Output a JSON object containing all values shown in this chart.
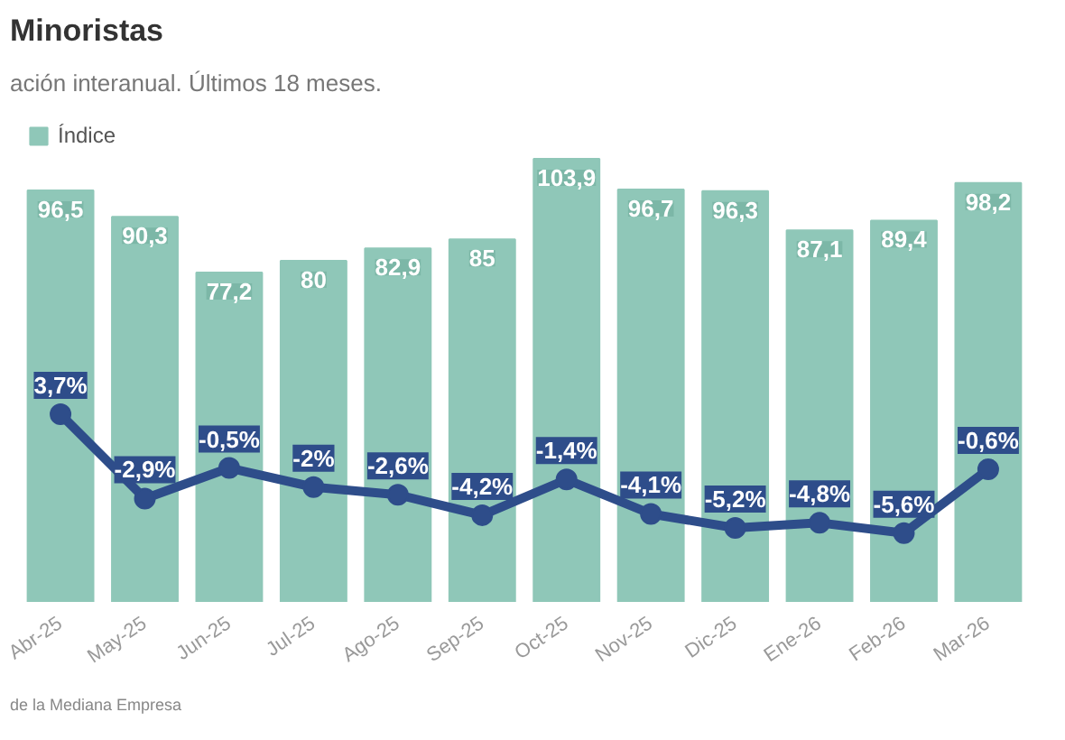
{
  "chart_data": {
    "type": "bar",
    "title": "Minoristas",
    "subtitle": "ación interanual. Últimos 18 meses.",
    "categories": [
      "Abr-25",
      "May-25",
      "Jun-25",
      "Jul-25",
      "Ago-25",
      "Sep-25",
      "Oct-25",
      "Nov-25",
      "Dic-25",
      "Ene-26",
      "Feb-26",
      "Mar-26"
    ],
    "series": [
      {
        "name": "Índice",
        "color": "#8fc7b8",
        "values": [
          96.5,
          90.3,
          77.2,
          80,
          82.9,
          85,
          103.9,
          96.7,
          96.3,
          87.1,
          89.4,
          98.2
        ],
        "value_labels": [
          "96,5",
          "90,3",
          "77,2",
          "80",
          "82,9",
          "85",
          "103,9",
          "96,7",
          "96,3",
          "87,1",
          "89,4",
          "98,2"
        ]
      },
      {
        "type": "line",
        "axis": "y2",
        "marker": "circle",
        "color": "#2e4d8a",
        "values": [
          3.7,
          -2.9,
          -0.5,
          -2,
          -2.6,
          -4.2,
          -1.4,
          -4.1,
          -5.2,
          -4.8,
          -5.6,
          -0.6
        ],
        "value_labels": [
          "3,7%",
          "-2,9%",
          "-0,5%",
          "-2%",
          "-2,6%",
          "-4,2%",
          "-1,4%",
          "-4,1%",
          "-5,2%",
          "-4,8%",
          "-5,6%",
          "-0,6%"
        ]
      }
    ],
    "legend": "top left",
    "tick_labels": "x",
    "grid": false,
    "annotations": [
      "de la Mediana Empresa"
    ]
  }
}
